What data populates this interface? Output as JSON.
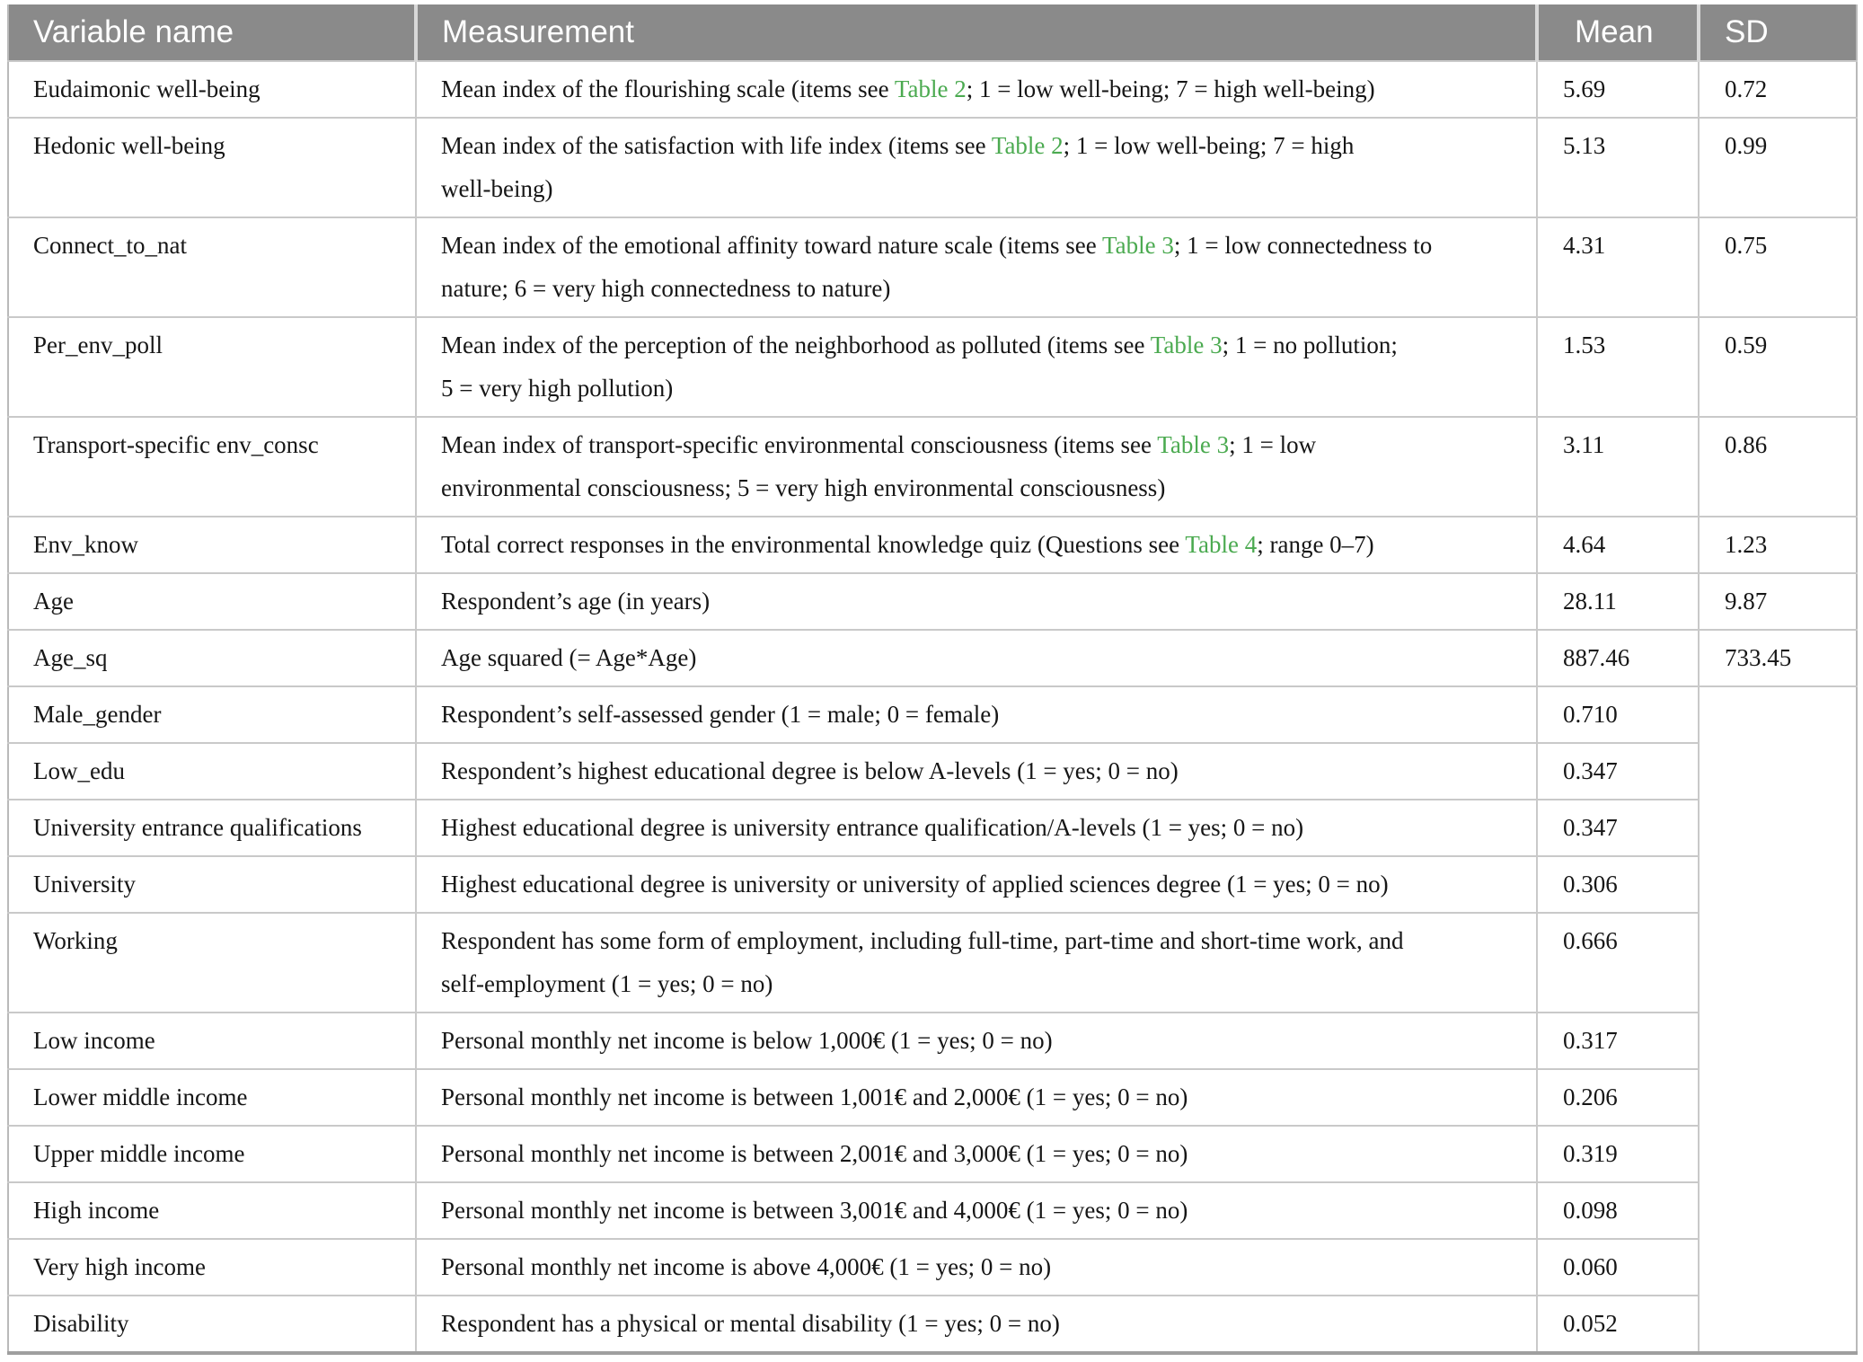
{
  "colors": {
    "header_bg": "#8a8a8a",
    "link_green": "#4baa50",
    "row_border": "#c9c9c9",
    "outer_border": "#9f9f9f",
    "side_border": "#b9b9b9",
    "header_divider": "#d8d8d8",
    "header_text": "#ffffff",
    "body_text": "#161616"
  },
  "table": {
    "columns": [
      "Variable name",
      "Measurement",
      "Mean",
      "SD"
    ],
    "rows": [
      {
        "variable": "Eudaimonic well-being",
        "measurement": [
          [
            {
              "t": "Mean index of the flourishing scale (items see "
            },
            {
              "t": "Table 2",
              "ref": true
            },
            {
              "t": "; 1 = low well-being; 7 = high well-being)"
            }
          ]
        ],
        "mean": "5.69",
        "sd": "0.72"
      },
      {
        "variable": "Hedonic well-being",
        "measurement": [
          [
            {
              "t": "Mean index of the satisfaction with life index (items see "
            },
            {
              "t": "Table 2",
              "ref": true
            },
            {
              "t": "; 1 = low well-being; 7 = high"
            }
          ],
          [
            {
              "t": "well-being)"
            }
          ]
        ],
        "mean": "5.13",
        "sd": "0.99"
      },
      {
        "variable": "Connect_to_nat",
        "measurement": [
          [
            {
              "t": "Mean index of the emotional affinity toward nature scale (items see "
            },
            {
              "t": "Table 3",
              "ref": true
            },
            {
              "t": "; 1 = low connectedness to"
            }
          ],
          [
            {
              "t": "nature; 6 = very high connectedness to nature)"
            }
          ]
        ],
        "mean": "4.31",
        "sd": "0.75"
      },
      {
        "variable": "Per_env_poll",
        "measurement": [
          [
            {
              "t": "Mean index of the perception of the neighborhood as polluted (items see "
            },
            {
              "t": "Table 3",
              "ref": true
            },
            {
              "t": "; 1 = no pollution;"
            }
          ],
          [
            {
              "t": "5 = very high pollution)"
            }
          ]
        ],
        "mean": "1.53",
        "sd": "0.59"
      },
      {
        "variable": "Transport-specific env_consc",
        "measurement": [
          [
            {
              "t": "Mean index of transport-specific environmental consciousness (items see "
            },
            {
              "t": "Table 3",
              "ref": true
            },
            {
              "t": "; 1 = low"
            }
          ],
          [
            {
              "t": "environmental consciousness; 5 = very high environmental consciousness)"
            }
          ]
        ],
        "mean": "3.11",
        "sd": "0.86"
      },
      {
        "variable": "Env_know",
        "measurement": [
          [
            {
              "t": "Total correct responses in the environmental knowledge quiz (Questions see "
            },
            {
              "t": "Table 4",
              "ref": true
            },
            {
              "t": "; range 0–7)"
            }
          ]
        ],
        "mean": "4.64",
        "sd": "1.23"
      },
      {
        "variable": "Age",
        "measurement": [
          [
            {
              "t": "Respondent’s age (in years)"
            }
          ]
        ],
        "mean": "28.11",
        "sd": "9.87"
      },
      {
        "variable": "Age_sq",
        "measurement": [
          [
            {
              "t": "Age squared (= Age*Age)"
            }
          ]
        ],
        "mean": "887.46",
        "sd": "733.45"
      },
      {
        "variable": "Male_gender",
        "measurement": [
          [
            {
              "t": "Respondent’s self-assessed gender (1 = male; 0 = female)"
            }
          ]
        ],
        "mean": "0.710",
        "sd": "",
        "sd_rowspan": 11
      },
      {
        "variable": "Low_edu",
        "measurement": [
          [
            {
              "t": "Respondent’s highest educational degree is below A-levels (1 = yes; 0 = no)"
            }
          ]
        ],
        "mean": "0.347"
      },
      {
        "variable": "University entrance qualifications",
        "measurement": [
          [
            {
              "t": "Highest educational degree is university entrance qualification/A-levels (1 = yes; 0 = no)"
            }
          ]
        ],
        "mean": "0.347"
      },
      {
        "variable": "University",
        "measurement": [
          [
            {
              "t": "Highest educational degree is university or university of applied sciences degree (1 = yes; 0 = no)"
            }
          ]
        ],
        "mean": "0.306"
      },
      {
        "variable": "Working",
        "measurement": [
          [
            {
              "t": "Respondent has some form of employment, including full-time, part-time and short-time work, and"
            }
          ],
          [
            {
              "t": "self-employment (1 = yes; 0 = no)"
            }
          ]
        ],
        "mean": "0.666"
      },
      {
        "variable": "Low income",
        "measurement": [
          [
            {
              "t": "Personal monthly net income is below 1,000€ (1 = yes; 0 = no)"
            }
          ]
        ],
        "mean": "0.317"
      },
      {
        "variable": "Lower middle income",
        "measurement": [
          [
            {
              "t": "Personal monthly net income is between 1,001€ and 2,000€ (1 = yes; 0 = no)"
            }
          ]
        ],
        "mean": "0.206"
      },
      {
        "variable": "Upper middle income",
        "measurement": [
          [
            {
              "t": "Personal monthly net income is between 2,001€ and 3,000€ (1 = yes; 0 = no)"
            }
          ]
        ],
        "mean": "0.319"
      },
      {
        "variable": "High income",
        "measurement": [
          [
            {
              "t": "Personal monthly net income is between 3,001€ and 4,000€ (1 = yes; 0 = no)"
            }
          ]
        ],
        "mean": "0.098"
      },
      {
        "variable": "Very high income",
        "measurement": [
          [
            {
              "t": "Personal monthly net income is above 4,000€ (1 = yes; 0 = no)"
            }
          ]
        ],
        "mean": "0.060"
      },
      {
        "variable": "Disability",
        "measurement": [
          [
            {
              "t": "Respondent has a physical or mental disability (1 = yes; 0 = no)"
            }
          ]
        ],
        "mean": "0.052"
      }
    ]
  }
}
